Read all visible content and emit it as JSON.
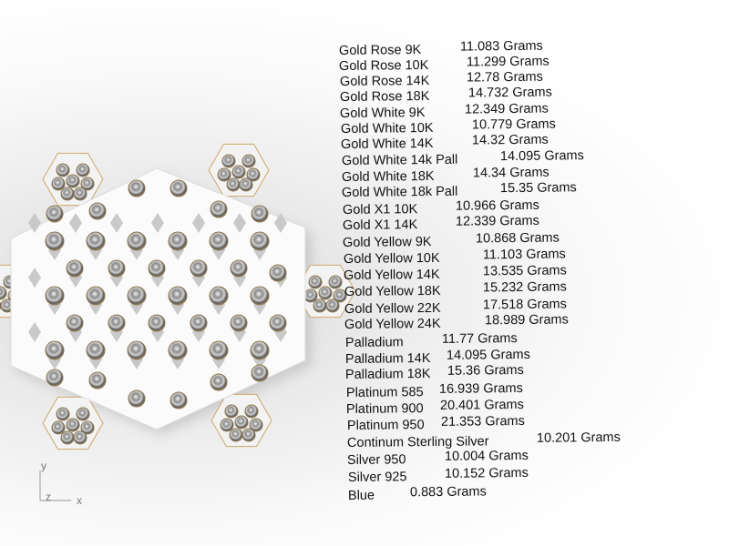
{
  "viewport": {
    "axis_labels": {
      "y": "y",
      "z": "z",
      "x": "x"
    }
  },
  "material_weights": [
    {
      "label": "Gold Rose 9K",
      "value": "11.083 Grams"
    },
    {
      "label": "Gold Rose 10K",
      "value": "11.299 Grams"
    },
    {
      "label": "Gold Rose 14K",
      "value": "12.78 Grams"
    },
    {
      "label": "Gold Rose 18K",
      "value": "14.732 Grams"
    },
    {
      "label": "Gold White 9K",
      "value": "12.349 Grams"
    },
    {
      "label": "Gold White 10K",
      "value": "10.779 Grams"
    },
    {
      "label": "Gold White 14K",
      "value": "14.32 Grams"
    },
    {
      "label": "Gold White 14k Pall",
      "value": "14.095 Grams"
    },
    {
      "label": "Gold White 18K",
      "value": "14.34 Grams"
    },
    {
      "label": "Gold White 18k Pall",
      "value": "15.35 Grams"
    },
    {
      "label": "Gold X1 10K",
      "value": "10.966 Grams"
    },
    {
      "label": "Gold X1 14K",
      "value": "12.339 Grams"
    },
    {
      "label": "Gold Yellow 9K",
      "value": "10.868 Grams"
    },
    {
      "label": "Gold Yellow 10K",
      "value": "11.103 Grams"
    },
    {
      "label": "Gold Yellow 14K",
      "value": "13.535 Grams"
    },
    {
      "label": "Gold Yellow 18K",
      "value": "15.232 Grams"
    },
    {
      "label": "Gold Yellow 22K",
      "value": "17.518 Grams"
    },
    {
      "label": "Gold Yellow 24K",
      "value": "18.989 Grams"
    },
    {
      "label": "Palladium",
      "value": "11.77 Grams"
    },
    {
      "label": "Palladium 14K",
      "value": "14.095 Grams"
    },
    {
      "label": "Palladium 18K",
      "value": "15.36 Grams"
    },
    {
      "label": "Platinum 585",
      "value": "16.939 Grams"
    },
    {
      "label": "Platinum 900",
      "value": "20.401 Grams"
    },
    {
      "label": "Platinum 950",
      "value": "21.353 Grams"
    },
    {
      "label": "Continum Sterling Silver",
      "value": "10.201 Grams"
    },
    {
      "label": "Silver 950",
      "value": "10.004 Grams"
    },
    {
      "label": "Silver 925",
      "value": "10.152 Grams"
    },
    {
      "label": "Blue",
      "value": "0.883 Grams"
    }
  ]
}
